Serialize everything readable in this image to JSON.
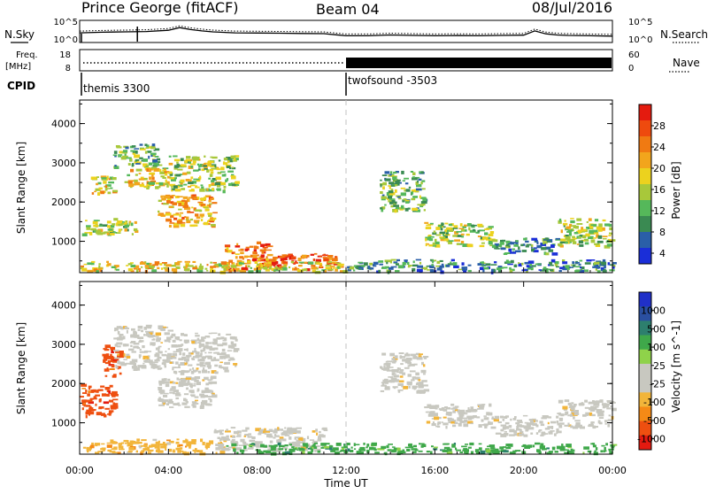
{
  "header": {
    "station": "Prince George (fitACF)",
    "beam": "Beam 04",
    "date": "08/Jul/2016"
  },
  "side_labels": {
    "nsky": "N.Sky",
    "freq_line1": "Freq.",
    "freq_line2": "[MHz]",
    "cpid": "CPID",
    "nsearch": "N.Search",
    "nave": "Nave"
  },
  "colors": {
    "power_scale": [
      "#1a2ed8",
      "#2a5fa8",
      "#3a8a52",
      "#55b85a",
      "#a8c83a",
      "#ecd21e",
      "#f2a51c",
      "#f07a12",
      "#ee4a0e",
      "#e41b0f"
    ],
    "velocity_scale": [
      "#e31a10",
      "#ee4f10",
      "#f58a16",
      "#f2b53a",
      "#c8c8c0",
      "#c8c8c0",
      "#8fd24a",
      "#3fa84a",
      "#2d7f6e",
      "#2a4fa0",
      "#2030c8"
    ],
    "dashed_line": "#c0c0c0"
  },
  "chart_data": [
    {
      "type": "line",
      "panel": "noise",
      "left_ticks": [
        "10^5",
        "10^0"
      ],
      "right_ticks": [
        "10^5",
        "10^0"
      ],
      "left_label": "N.Sky",
      "right_label": "N.Search",
      "series": [
        {
          "x": [
            0,
            1,
            2,
            3,
            4,
            4.5,
            5,
            5.5,
            6,
            7,
            8,
            9,
            10,
            11,
            12,
            13,
            14,
            15,
            16,
            17,
            18,
            19,
            20,
            20.5,
            21,
            21.5,
            22,
            23,
            24
          ],
          "y": [
            0.45,
            0.48,
            0.5,
            0.52,
            0.58,
            0.72,
            0.62,
            0.55,
            0.5,
            0.45,
            0.44,
            0.43,
            0.42,
            0.41,
            0.3,
            0.3,
            0.34,
            0.32,
            0.3,
            0.31,
            0.3,
            0.32,
            0.33,
            0.55,
            0.4,
            0.34,
            0.32,
            0.3,
            0.28
          ]
        }
      ]
    },
    {
      "type": "line",
      "panel": "frequency",
      "left_ticks": [
        "18",
        "8"
      ],
      "right_ticks": [
        "60",
        "0"
      ],
      "note": "frequency dotted near 10.5 MHz; Nave dense from 12:00",
      "series": [
        {
          "x": [
            0,
            12
          ],
          "y": [
            10.5,
            10.5
          ]
        },
        {
          "x": [
            12,
            24
          ],
          "y": [
            35,
            35
          ]
        }
      ]
    },
    {
      "type": "table",
      "panel": "cpid",
      "segments": [
        {
          "start": 0,
          "label": "themis 3300"
        },
        {
          "start": 12,
          "label": "twofsound -3503"
        }
      ]
    },
    {
      "type": "heatmap",
      "panel": "power",
      "ylabel": "Slant Range [km]",
      "ylim": [
        200,
        4600
      ],
      "yticks": [
        1000,
        2000,
        3000,
        4000
      ],
      "colorbar_label": "Power [dB]",
      "colorbar_ticks": [
        "28",
        "24",
        "20",
        "16",
        "12",
        "8",
        "4"
      ],
      "regions": [
        {
          "t": [
            0.0,
            2.5
          ],
          "r": [
            1200,
            1600
          ],
          "p": 12
        },
        {
          "t": [
            0.5,
            1.5
          ],
          "r": [
            2200,
            2700
          ],
          "p": 16
        },
        {
          "t": [
            1.5,
            3.5
          ],
          "r": [
            2900,
            3500
          ],
          "p": 10
        },
        {
          "t": [
            3.5,
            6.0
          ],
          "r": [
            1400,
            2200
          ],
          "p": 20
        },
        {
          "t": [
            4.0,
            7.0
          ],
          "r": [
            2300,
            3200
          ],
          "p": 12
        },
        {
          "t": [
            2.0,
            4.0
          ],
          "r": [
            2400,
            2900
          ],
          "p": 16
        },
        {
          "t": [
            6.5,
            8.5
          ],
          "r": [
            300,
            1000
          ],
          "p": 24
        },
        {
          "t": [
            8.0,
            11.5
          ],
          "r": [
            300,
            700
          ],
          "p": 26
        },
        {
          "t": [
            0.0,
            12.0
          ],
          "r": [
            250,
            500
          ],
          "p": 18
        },
        {
          "t": [
            12.0,
            24.0
          ],
          "r": [
            250,
            550
          ],
          "p": 8
        },
        {
          "t": [
            13.5,
            15.5
          ],
          "r": [
            1800,
            2800
          ],
          "p": 10
        },
        {
          "t": [
            15.5,
            18.5
          ],
          "r": [
            900,
            1500
          ],
          "p": 12
        },
        {
          "t": [
            18.5,
            21.5
          ],
          "r": [
            700,
            1100
          ],
          "p": 8
        },
        {
          "t": [
            21.5,
            24.0
          ],
          "r": [
            900,
            1600
          ],
          "p": 12
        }
      ]
    },
    {
      "type": "heatmap",
      "panel": "velocity",
      "ylabel": "Slant Range [km]",
      "xlabel": "Time UT",
      "ylim": [
        200,
        4600
      ],
      "yticks": [
        1000,
        2000,
        3000,
        4000
      ],
      "xticks": [
        "00:00",
        "04:00",
        "08:00",
        "12:00",
        "16:00",
        "20:00",
        "00:00"
      ],
      "colorbar_label": "Velocity [m s^-1]",
      "colorbar_ticks": [
        "1000",
        "500",
        "100",
        "25",
        "-25",
        "-100",
        "-500",
        "-1000"
      ],
      "regions": [
        {
          "t": [
            0.0,
            1.5
          ],
          "r": [
            1200,
            2000
          ],
          "v": -500
        },
        {
          "t": [
            1.0,
            1.8
          ],
          "r": [
            2200,
            3000
          ],
          "v": -500
        },
        {
          "t": [
            1.5,
            4.0
          ],
          "r": [
            2400,
            3500
          ],
          "v": 0
        },
        {
          "t": [
            3.5,
            6.0
          ],
          "r": [
            1400,
            2200
          ],
          "v": 0
        },
        {
          "t": [
            4.0,
            7.0
          ],
          "r": [
            2300,
            3300
          ],
          "v": 0
        },
        {
          "t": [
            0.0,
            6.5
          ],
          "r": [
            250,
            600
          ],
          "v": -100
        },
        {
          "t": [
            6.0,
            11.0
          ],
          "r": [
            300,
            900
          ],
          "v": 0
        },
        {
          "t": [
            6.5,
            12.0
          ],
          "r": [
            250,
            500
          ],
          "v": 100
        },
        {
          "t": [
            12.0,
            24.0
          ],
          "r": [
            250,
            500
          ],
          "v": 200
        },
        {
          "t": [
            13.5,
            15.5
          ],
          "r": [
            1800,
            2800
          ],
          "v": 0
        },
        {
          "t": [
            15.5,
            18.5
          ],
          "r": [
            900,
            1500
          ],
          "v": 0
        },
        {
          "t": [
            18.5,
            21.5
          ],
          "r": [
            700,
            1200
          ],
          "v": 0
        },
        {
          "t": [
            21.5,
            24.0
          ],
          "r": [
            900,
            1600
          ],
          "v": 0
        }
      ]
    }
  ]
}
